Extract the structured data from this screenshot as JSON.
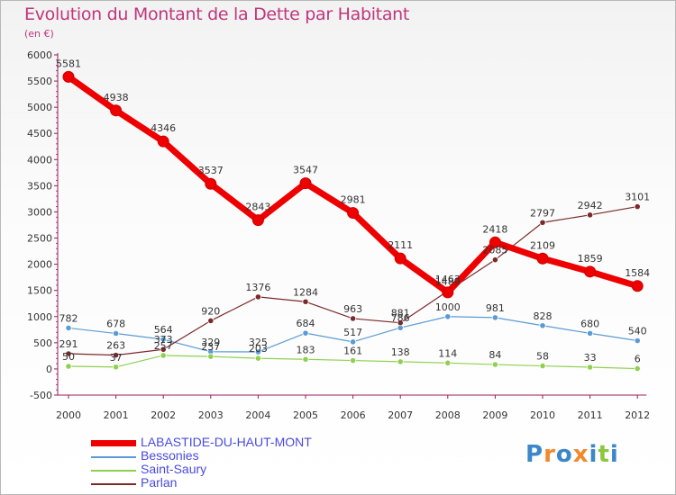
{
  "title": "Evolution du Montant de la Dette par Habitant",
  "unit_label": "(en €)",
  "logo_text": "Proxiti",
  "chart_data": {
    "type": "line",
    "title": "Evolution du Montant de la Dette par Habitant",
    "subtitle": "(en €)",
    "xlabel": "",
    "ylabel": "",
    "ylim": [
      -500,
      6000
    ],
    "yticks": [
      -500,
      0,
      500,
      1000,
      1500,
      2000,
      2500,
      3000,
      3500,
      4000,
      4500,
      5000,
      5500,
      6000
    ],
    "x": [
      "2000",
      "2001",
      "2002",
      "2003",
      "2004",
      "2005",
      "2006",
      "2007",
      "2008",
      "2009",
      "2010",
      "2011",
      "2012"
    ],
    "grid": false,
    "legend_position": "bottom-left",
    "series": [
      {
        "name": "Bessonies",
        "color": "#5b9bd5",
        "values": [
          782,
          678,
          564,
          329,
          325,
          684,
          517,
          786,
          1000,
          981,
          828,
          680,
          540
        ],
        "labels": [
          "782",
          "678",
          "564",
          "329",
          "325",
          "684",
          "517",
          "786",
          "1000",
          "981",
          "828",
          "680",
          "540"
        ]
      },
      {
        "name": "Saint-Saury",
        "color": "#8fd14f",
        "values": [
          50,
          37,
          257,
          237,
          203,
          183,
          161,
          138,
          114,
          84,
          58,
          33,
          6
        ],
        "labels": [
          "50",
          "37",
          "257",
          "237",
          "203",
          "183",
          "161",
          "138",
          "114",
          "84",
          "58",
          "33",
          "6"
        ]
      },
      {
        "name": "Parlan",
        "color": "#7a2a2a",
        "values": [
          291,
          263,
          373,
          920,
          1376,
          1284,
          963,
          881,
          1489,
          2085,
          2797,
          2942,
          3101
        ],
        "labels": [
          "291",
          "263",
          "373",
          "920",
          "1376",
          "1284",
          "963",
          "881",
          "1489",
          "2085",
          "2797",
          "2942",
          "3101"
        ]
      },
      {
        "name": "LABASTIDE-DU-HAUT-MONT",
        "color": "#ee0000",
        "values": [
          5581,
          4938,
          4346,
          3537,
          2843,
          3547,
          2981,
          2111,
          1463,
          2418,
          2109,
          1859,
          1584
        ],
        "labels": [
          "5581",
          "4938",
          "4346",
          "3537",
          "2843",
          "3547",
          "2981",
          "2111",
          "1463",
          "2418",
          "2109",
          "1859",
          "1584"
        ]
      }
    ],
    "legend": [
      "LABASTIDE-DU-HAUT-MONT",
      "Bessonies",
      "Saint-Saury",
      "Parlan"
    ]
  }
}
